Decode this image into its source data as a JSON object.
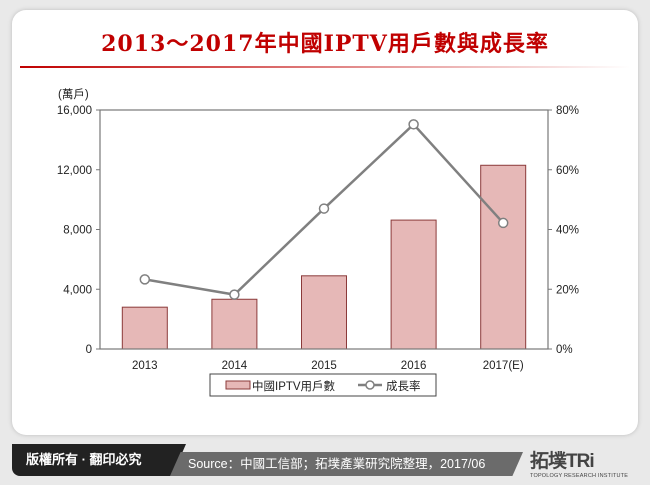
{
  "title": "2013～2017年中國IPTV用戶數與成長率",
  "footer": {
    "copyright": "版權所有 · 翻印必究",
    "source": "Source：中國工信部；拓墣產業研究院整理，2017/06",
    "logo_text": "拓墣TRi",
    "logo_sub": "TOPOLOGY RESEARCH INSTITUTE"
  },
  "colors": {
    "bar": "#e6b8b7",
    "bar_border": "#8b3a3a",
    "line": "#808080",
    "title": "#c00000"
  },
  "chart_data": {
    "type": "bar+line",
    "title": "2013～2017年中國IPTV用戶數與成長率",
    "categories": [
      "2013",
      "2014",
      "2015",
      "2016",
      "2017(E)"
    ],
    "ylabel": "(萬戶)",
    "ylim": [
      0,
      16000
    ],
    "yticks": [
      "0",
      "4,000",
      "8,000",
      "12,000",
      "16,000"
    ],
    "y2lim": [
      0,
      80
    ],
    "y2ticks": [
      "0%",
      "20%",
      "40%",
      "60%",
      "80%"
    ],
    "series": [
      {
        "name": "中國IPTV用戶數",
        "type": "bar",
        "axis": "left",
        "values": [
          2800,
          3330,
          4900,
          8630,
          12300
        ]
      },
      {
        "name": "成長率",
        "type": "line",
        "axis": "right",
        "values": [
          23.3,
          18.2,
          47,
          75.2,
          42.2
        ]
      }
    ],
    "legend": "bottom",
    "grid": false
  }
}
